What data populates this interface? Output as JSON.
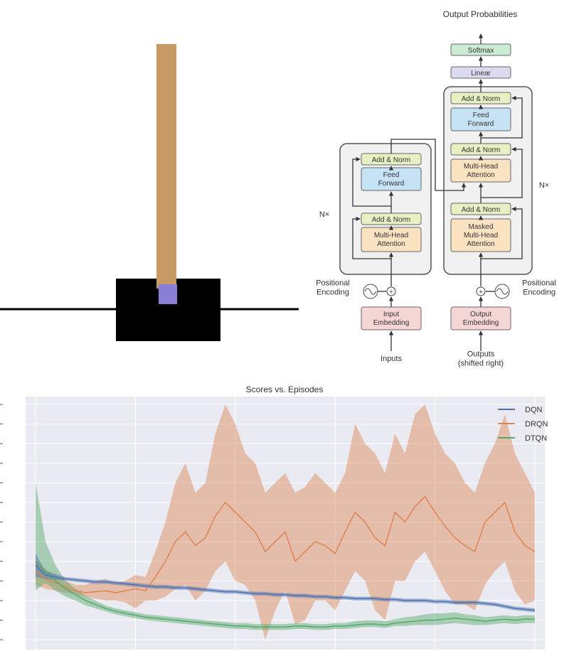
{
  "cartpole": {
    "colors": {
      "pole": "#c79a64",
      "cart": "#000000",
      "axle": "#8a7fd6",
      "track": "#000000"
    },
    "pole_angle_deg": 0
  },
  "transformer": {
    "output_title": "Output\nProbabilities",
    "softmax": "Softmax",
    "linear": "Linear",
    "decoder_add_norm_top": "Add & Norm",
    "decoder_feed_forward": "Feed\nForward",
    "decoder_add_norm_mid": "Add & Norm",
    "decoder_mha": "Multi-Head\nAttention",
    "decoder_add_norm_bottom": "Add & Norm",
    "decoder_masked_mha": "Masked\nMulti-Head\nAttention",
    "decoder_nx": "N×",
    "encoder_add_norm_top": "Add & Norm",
    "encoder_feed_forward": "Feed\nForward",
    "encoder_add_norm_bottom": "Add & Norm",
    "encoder_mha": "Multi-Head\nAttention",
    "encoder_nx": "N×",
    "positional_left": "Positional\nEncoding",
    "positional_right": "Positional\nEncoding",
    "input_embedding": "Input\nEmbedding",
    "output_embedding": "Output\nEmbedding",
    "inputs": "Inputs",
    "outputs": "Outputs\n(shifted right)",
    "colors": {
      "add_norm": "#e7f0c3",
      "feed_forward": "#c6e3f6",
      "attention": "#fbe2c0",
      "embedding": "#f6d5d5",
      "linear": "#dcdaf0",
      "softmax": "#c9ecd3"
    }
  },
  "chart_data": {
    "type": "line",
    "title": "Scores vs. Episodes",
    "xlabel": "",
    "ylabel": "",
    "grid": true,
    "legend_position": "top-right",
    "x": [
      0,
      2,
      4,
      6,
      8,
      10,
      12,
      14,
      16,
      18,
      20,
      22,
      24,
      26,
      28,
      30,
      32,
      34,
      36,
      38,
      40,
      42,
      44,
      46,
      48,
      50,
      52,
      54,
      56,
      58,
      60,
      62,
      64,
      66,
      68,
      70,
      72,
      74,
      76,
      78,
      80,
      82,
      84,
      86,
      88,
      90,
      92,
      94,
      96,
      98,
      100
    ],
    "xlim": [
      -2,
      102
    ],
    "ylim": [
      -1.5,
      11.4
    ],
    "series": [
      {
        "name": "DQN",
        "color": "#4c72b0",
        "values": [
          2.8,
          2.3,
          2.2,
          2.1,
          2.05,
          2.0,
          1.95,
          1.95,
          1.9,
          1.85,
          1.8,
          1.75,
          1.7,
          1.7,
          1.65,
          1.65,
          1.6,
          1.55,
          1.5,
          1.45,
          1.45,
          1.4,
          1.35,
          1.35,
          1.3,
          1.3,
          1.25,
          1.25,
          1.2,
          1.2,
          1.15,
          1.15,
          1.1,
          1.1,
          1.1,
          1.05,
          1.05,
          1.0,
          1.0,
          1.0,
          0.95,
          0.95,
          0.9,
          0.9,
          0.9,
          0.85,
          0.8,
          0.7,
          0.6,
          0.55,
          0.5
        ],
        "lower": [
          2.2,
          2.1,
          2.05,
          2.0,
          1.95,
          1.9,
          1.85,
          1.85,
          1.8,
          1.75,
          1.7,
          1.65,
          1.6,
          1.6,
          1.55,
          1.55,
          1.5,
          1.45,
          1.4,
          1.35,
          1.35,
          1.3,
          1.25,
          1.25,
          1.2,
          1.2,
          1.15,
          1.15,
          1.1,
          1.1,
          1.05,
          1.05,
          1.0,
          1.0,
          1.0,
          0.95,
          0.95,
          0.9,
          0.9,
          0.9,
          0.85,
          0.85,
          0.8,
          0.8,
          0.8,
          0.75,
          0.7,
          0.6,
          0.5,
          0.45,
          0.4
        ],
        "upper": [
          3.4,
          2.5,
          2.35,
          2.2,
          2.15,
          2.1,
          2.05,
          2.05,
          2.0,
          1.95,
          1.9,
          1.85,
          1.8,
          1.8,
          1.75,
          1.75,
          1.7,
          1.65,
          1.6,
          1.55,
          1.55,
          1.5,
          1.45,
          1.45,
          1.4,
          1.4,
          1.35,
          1.35,
          1.3,
          1.3,
          1.25,
          1.25,
          1.2,
          1.2,
          1.2,
          1.15,
          1.15,
          1.1,
          1.1,
          1.1,
          1.05,
          1.05,
          1.0,
          1.0,
          1.0,
          0.95,
          0.9,
          0.8,
          0.7,
          0.65,
          0.6
        ]
      },
      {
        "name": "DRQN",
        "color": "#dd8452",
        "values": [
          2.5,
          2.1,
          1.9,
          1.7,
          1.5,
          1.4,
          1.45,
          1.5,
          1.4,
          1.5,
          1.6,
          1.5,
          2.2,
          3.0,
          4.0,
          4.5,
          3.8,
          4.2,
          5.3,
          6.0,
          5.5,
          5.0,
          4.5,
          3.5,
          4.0,
          4.5,
          3.0,
          3.5,
          4.0,
          3.8,
          3.4,
          4.5,
          5.5,
          5.0,
          4.2,
          3.8,
          5.5,
          5.0,
          5.8,
          6.3,
          5.5,
          4.8,
          4.2,
          3.8,
          3.5,
          5.0,
          5.5,
          6.0,
          4.5,
          3.8,
          3.5
        ],
        "lower": [
          1.8,
          1.6,
          1.5,
          1.4,
          1.3,
          1.2,
          1.1,
          1.0,
          1.0,
          0.9,
          0.6,
          1.0,
          1.0,
          1.2,
          1.6,
          1.8,
          1.0,
          1.5,
          2.5,
          3.0,
          2.0,
          1.8,
          1.0,
          -1.0,
          0.5,
          1.5,
          -0.2,
          0.0,
          1.0,
          1.0,
          0.5,
          1.5,
          2.5,
          2.0,
          0.5,
          0.0,
          2.0,
          2.0,
          3.0,
          3.5,
          2.5,
          1.5,
          0.8,
          0.8,
          0.5,
          1.8,
          2.5,
          3.0,
          1.5,
          0.8,
          1.0
        ],
        "upper": [
          3.0,
          2.6,
          2.3,
          2.0,
          1.8,
          1.8,
          2.0,
          2.1,
          1.9,
          2.0,
          2.3,
          2.2,
          3.5,
          5.0,
          7.0,
          8.0,
          6.5,
          7.0,
          9.5,
          11.0,
          10.0,
          8.5,
          8.0,
          6.5,
          7.0,
          7.5,
          6.5,
          6.8,
          7.5,
          7.0,
          6.5,
          7.5,
          10.0,
          9.0,
          8.5,
          7.5,
          9.5,
          8.5,
          10.5,
          11.0,
          9.5,
          8.5,
          8.0,
          7.0,
          6.5,
          8.0,
          9.0,
          10.5,
          8.5,
          7.5,
          6.5
        ]
      },
      {
        "name": "DTQN",
        "color": "#55a868",
        "values": [
          3.0,
          2.5,
          2.0,
          1.6,
          1.3,
          1.0,
          0.8,
          0.6,
          0.45,
          0.35,
          0.25,
          0.15,
          0.1,
          0.05,
          0.0,
          -0.05,
          -0.1,
          -0.15,
          -0.2,
          -0.25,
          -0.3,
          -0.3,
          -0.35,
          -0.35,
          -0.35,
          -0.35,
          -0.3,
          -0.3,
          -0.35,
          -0.35,
          -0.3,
          -0.3,
          -0.25,
          -0.2,
          -0.2,
          -0.25,
          -0.15,
          -0.1,
          -0.05,
          -0.0,
          0.0,
          0.05,
          0.1,
          0.05,
          0.0,
          -0.05,
          0.0,
          0.05,
          0.0,
          0.05,
          0.05
        ],
        "lower": [
          1.5,
          1.9,
          1.5,
          1.2,
          1.0,
          0.75,
          0.6,
          0.45,
          0.3,
          0.2,
          0.1,
          0.0,
          -0.05,
          -0.1,
          -0.15,
          -0.2,
          -0.25,
          -0.3,
          -0.35,
          -0.4,
          -0.45,
          -0.45,
          -0.5,
          -0.5,
          -0.5,
          -0.5,
          -0.45,
          -0.45,
          -0.5,
          -0.5,
          -0.45,
          -0.45,
          -0.4,
          -0.35,
          -0.35,
          -0.4,
          -0.3,
          -0.3,
          -0.25,
          -0.25,
          -0.25,
          -0.2,
          -0.15,
          -0.2,
          -0.25,
          -0.25,
          -0.2,
          -0.15,
          -0.2,
          -0.15,
          -0.15
        ],
        "upper": [
          7.0,
          4.0,
          2.8,
          2.0,
          1.6,
          1.25,
          1.0,
          0.75,
          0.6,
          0.5,
          0.4,
          0.3,
          0.25,
          0.2,
          0.15,
          0.1,
          0.05,
          0.0,
          -0.05,
          -0.1,
          -0.15,
          -0.15,
          -0.2,
          -0.2,
          -0.2,
          -0.2,
          -0.15,
          -0.15,
          -0.2,
          -0.2,
          -0.15,
          -0.15,
          -0.05,
          0.0,
          0.0,
          -0.05,
          0.05,
          0.15,
          0.2,
          0.3,
          0.35,
          0.35,
          0.4,
          0.3,
          0.25,
          0.15,
          0.2,
          0.25,
          0.2,
          0.25,
          0.25
        ]
      }
    ]
  }
}
